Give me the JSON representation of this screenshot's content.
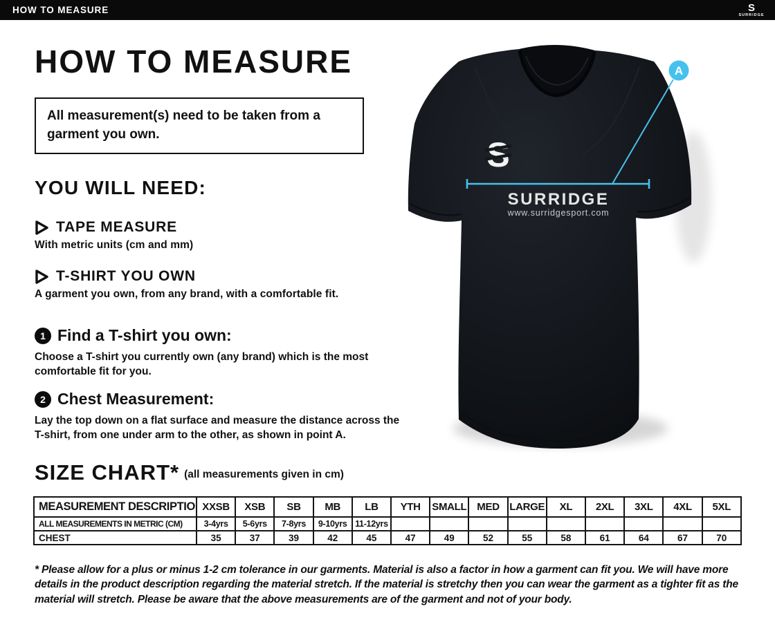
{
  "topbar": {
    "title": "HOW TO MEASURE",
    "brand_initial": "S",
    "brand": "SURRIDGE"
  },
  "heading": "HOW TO MEASURE",
  "notice": "All measurement(s) need to be taken from a garment you own.",
  "you_will_need": {
    "heading": "YOU WILL NEED:",
    "items": [
      {
        "title": "TAPE MEASURE",
        "description": "With metric units (cm and mm)"
      },
      {
        "title": "T-SHIRT YOU OWN",
        "description": "A garment you own, from any brand, with a comfortable fit."
      }
    ]
  },
  "steps": [
    {
      "number": "1",
      "title": "Find a T-shirt you own:",
      "description": "Choose a T-shirt you currently own (any brand) which is the most comfortable fit for you."
    },
    {
      "number": "2",
      "title": "Chest Measurement:",
      "description": "Lay the top down on a flat surface and measure the distance across the T-shirt, from one under arm to the other, as shown in point A."
    }
  ],
  "size_chart": {
    "title": "SIZE CHART*",
    "subtitle": "(all measurements given in cm)",
    "table": {
      "headers": [
        "MEASUREMENT DESCRIPTION",
        "XXSB",
        "XSB",
        "SB",
        "MB",
        "LB",
        "YTH",
        "SMALL",
        "MED",
        "LARGE",
        "XL",
        "2XL",
        "3XL",
        "4XL",
        "5XL"
      ],
      "rows": [
        [
          "ALL MEASUREMENTS IN METRIC (CM)",
          "3-4yrs",
          "5-6yrs",
          "7-8yrs",
          "9-10yrs",
          "11-12yrs",
          "",
          "",
          "",
          "",
          "",
          "",
          "",
          "",
          ""
        ],
        [
          "CHEST",
          "35",
          "37",
          "39",
          "42",
          "45",
          "47",
          "49",
          "52",
          "55",
          "58",
          "61",
          "64",
          "67",
          "70"
        ]
      ]
    }
  },
  "footnote": "* Please allow for a plus or minus 1-2 cm tolerance in our garments. Material is also a factor in how a garment can fit you. We will have more details in the product description regarding the material stretch.  If the material is stretchy then you can wear the garment as a tighter fit as the material will stretch.  Please be aware that the above measurements are of the garment and not of your body.",
  "shirt": {
    "brand_initial": "S",
    "brand": "SURRIDGE",
    "website": "www.surridgesport.com",
    "point_label": "A",
    "accent_color": "#46c1ee",
    "shirt_color": "#14171c"
  },
  "chart_data": {
    "type": "table",
    "headers": [
      "MEASUREMENT DESCRIPTION",
      "XXSB",
      "XSB",
      "SB",
      "MB",
      "LB",
      "YTH",
      "SMALL",
      "MED",
      "LARGE",
      "XL",
      "2XL",
      "3XL",
      "4XL",
      "5XL"
    ],
    "rows": [
      [
        "ALL MEASUREMENTS IN METRIC (CM)",
        "3-4yrs",
        "5-6yrs",
        "7-8yrs",
        "9-10yrs",
        "11-12yrs",
        "",
        "",
        "",
        "",
        "",
        "",
        "",
        "",
        ""
      ],
      [
        "CHEST",
        "35",
        "37",
        "39",
        "42",
        "45",
        "47",
        "49",
        "52",
        "55",
        "58",
        "61",
        "64",
        "67",
        "70"
      ]
    ]
  }
}
